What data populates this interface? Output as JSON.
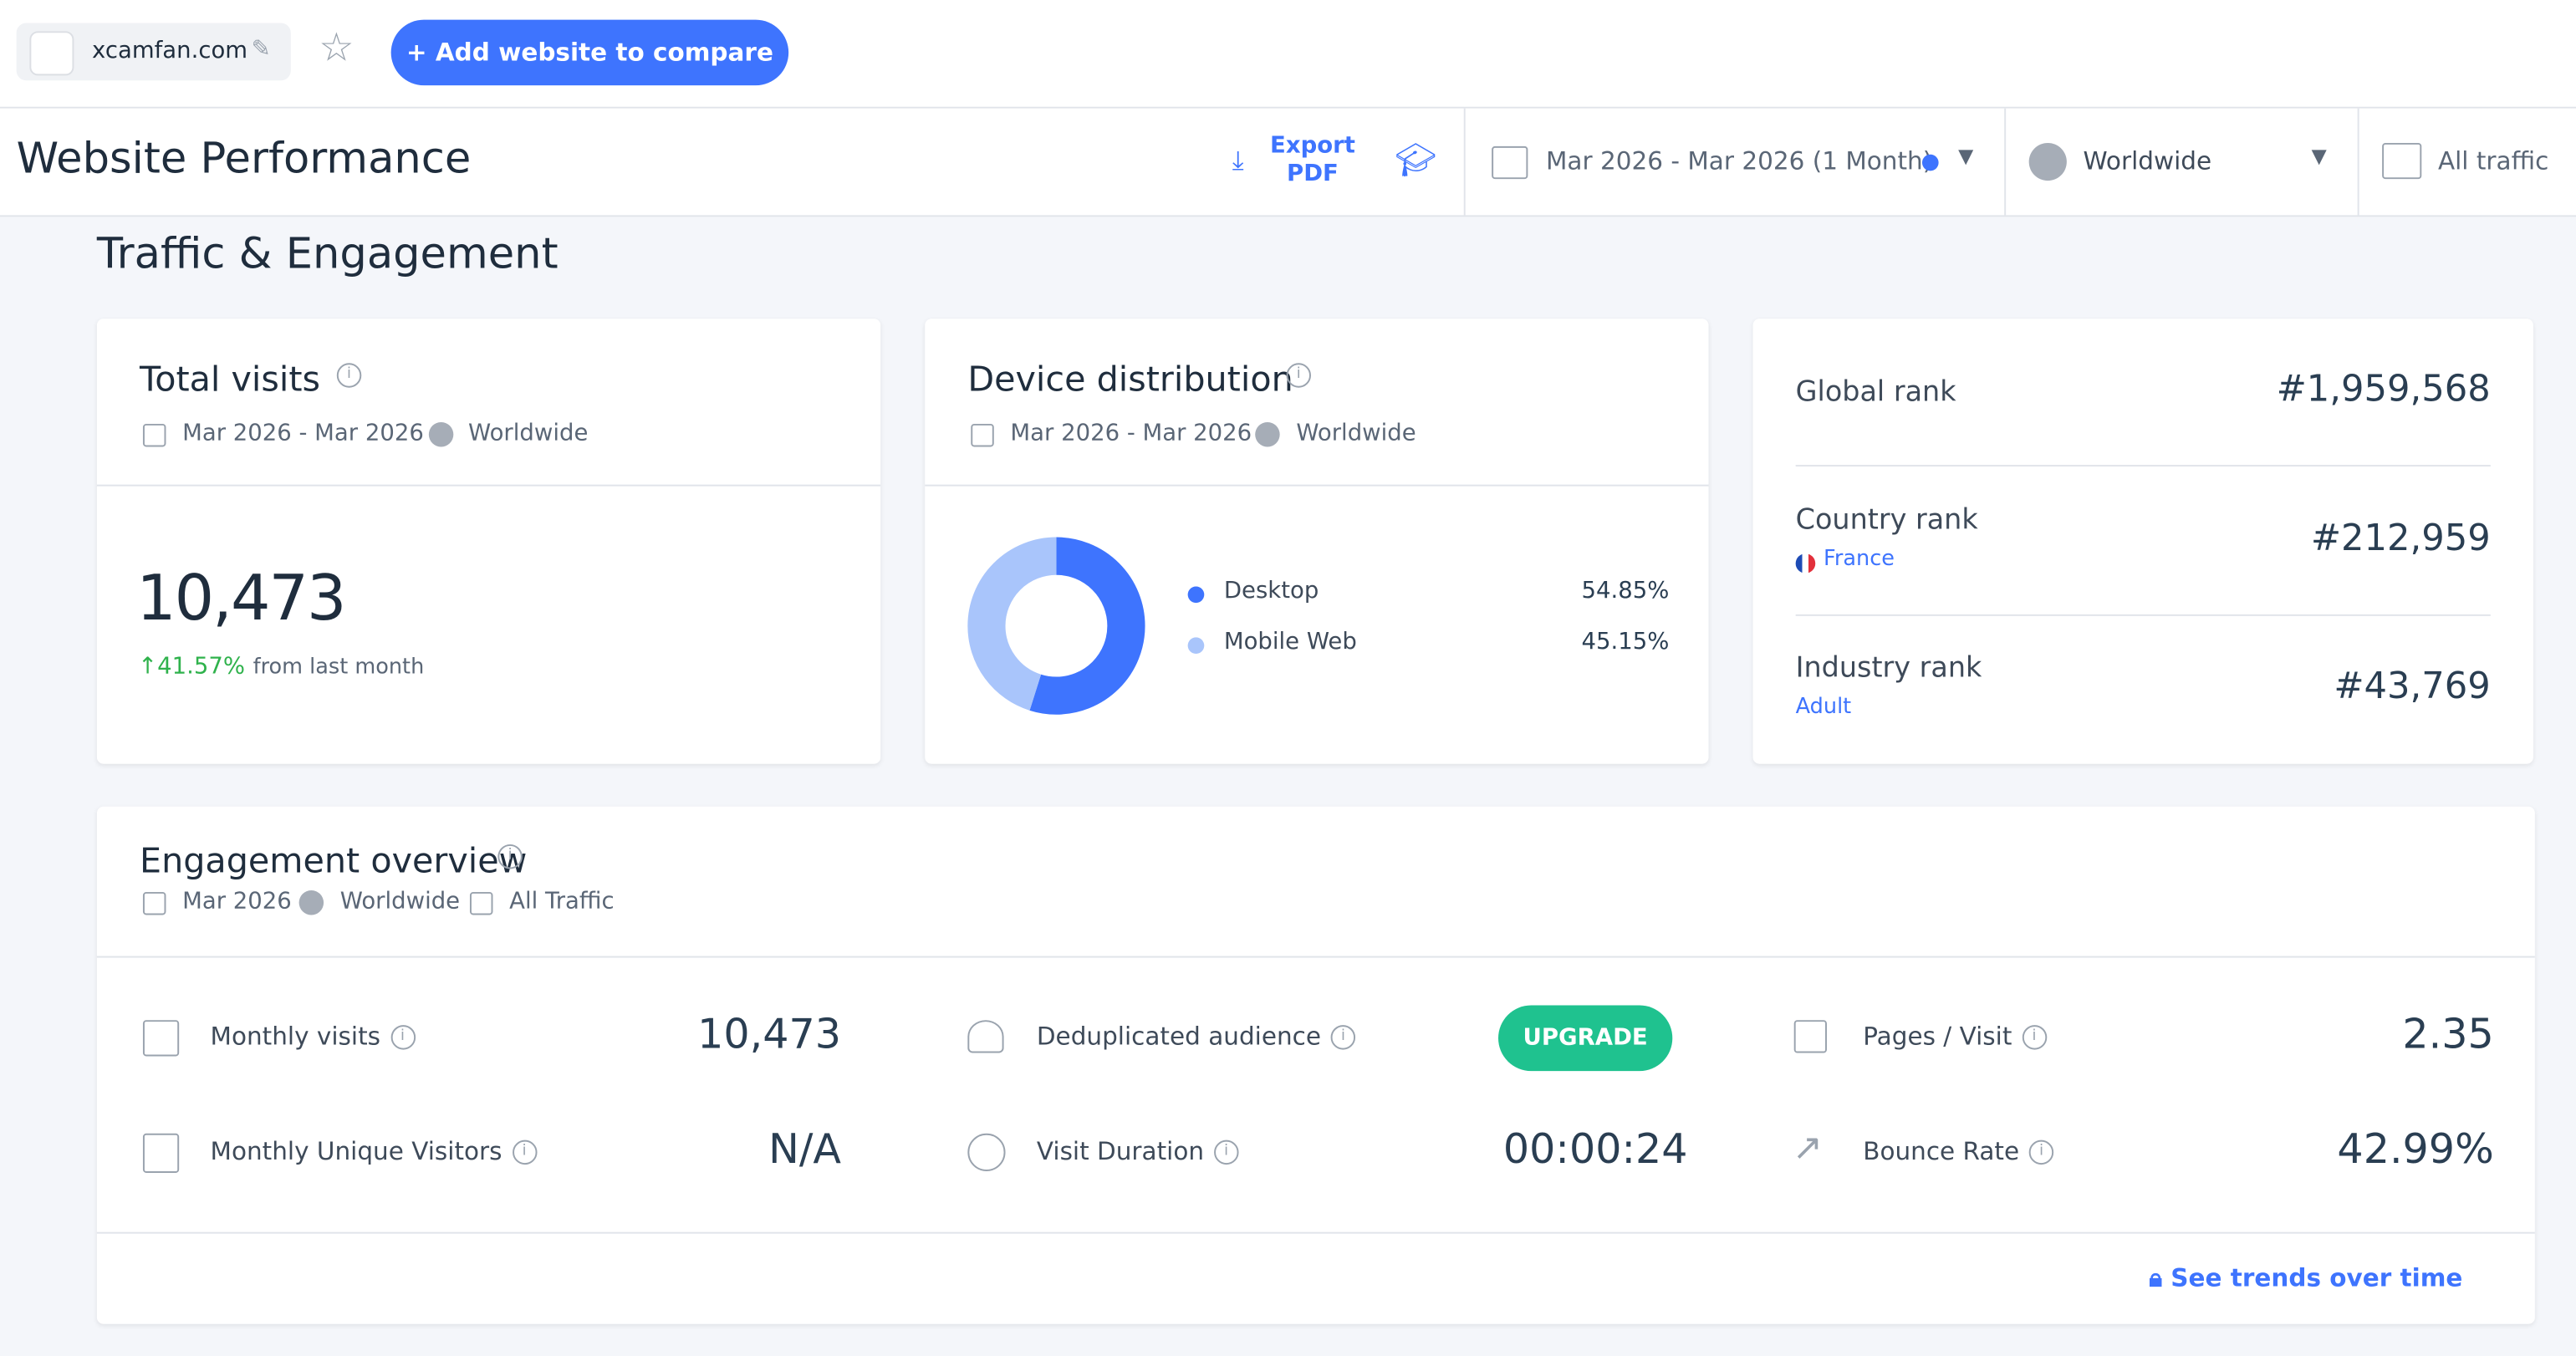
{
  "toolbar": {
    "site": "xcamfan.com",
    "add_button": "Add website to compare"
  },
  "header": {
    "title": "Website Performance",
    "export": "Export PDF",
    "date_range": "Mar 2026 - Mar 2026 (1 Month)",
    "region": "Worldwide",
    "traffic": "All traffic"
  },
  "section_title": "Traffic & Engagement",
  "total_visits": {
    "title": "Total visits",
    "date": "Mar 2026 - Mar 2026",
    "region": "Worldwide",
    "value": "10,473",
    "change": "41.57%",
    "change_note": "from last month"
  },
  "device_distribution": {
    "title": "Device distribution",
    "date": "Mar 2026 - Mar 2026",
    "region": "Worldwide",
    "segments": [
      {
        "name": "Desktop",
        "value": 54.85,
        "label": "54.85%",
        "color": "#3e74fe"
      },
      {
        "name": "Mobile Web",
        "value": 45.15,
        "label": "45.15%",
        "color": "#a9c5fb"
      }
    ]
  },
  "ranks": [
    {
      "label": "Global rank",
      "value": "#1,959,568"
    },
    {
      "label": "Country rank",
      "sub": "France",
      "value": "#212,959"
    },
    {
      "label": "Industry rank",
      "sub": "Adult",
      "value": "#43,769"
    }
  ],
  "engagement": {
    "title": "Engagement overview",
    "date": "Mar 2026",
    "region": "Worldwide",
    "traffic": "All Traffic",
    "metrics": [
      {
        "label": "Monthly visits",
        "value": "10,473"
      },
      {
        "label": "Deduplicated audience",
        "value": "UPGRADE"
      },
      {
        "label": "Pages / Visit",
        "value": "2.35"
      },
      {
        "label": "Monthly Unique Visitors",
        "value": "N/A"
      },
      {
        "label": "Visit Duration",
        "value": "00:00:24"
      },
      {
        "label": "Bounce Rate",
        "value": "42.99%"
      }
    ],
    "link": "See trends over time"
  }
}
